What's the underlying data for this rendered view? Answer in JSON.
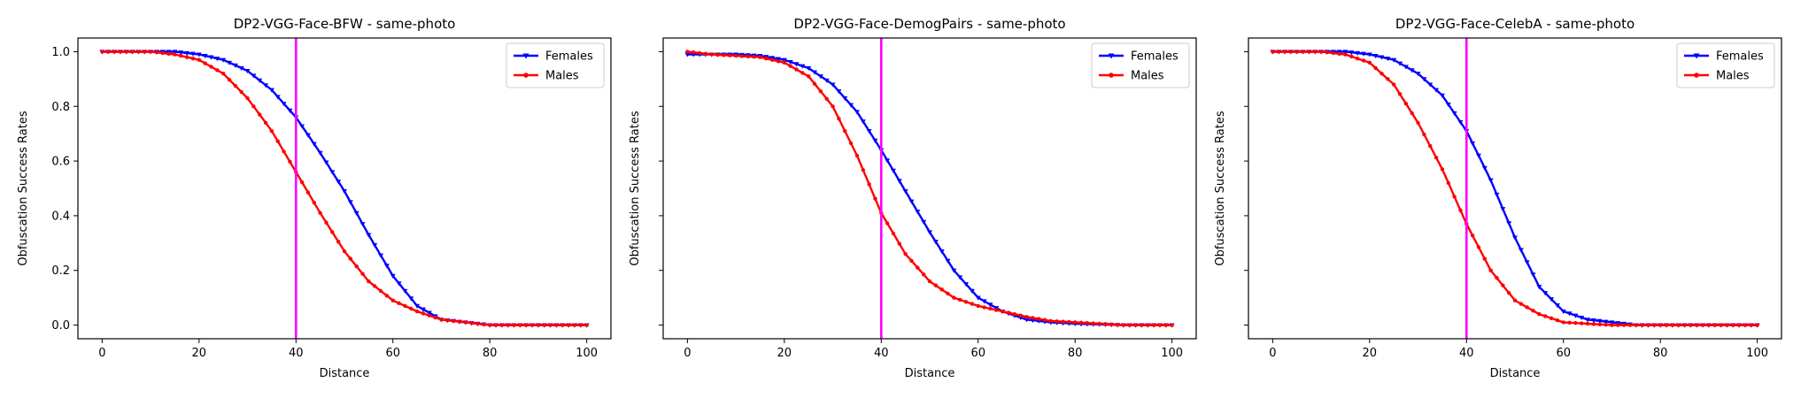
{
  "chart_data": [
    {
      "type": "line",
      "title": "DP2-VGG-Face-BFW - same-photo",
      "xlabel": "Distance",
      "ylabel": "Obfuscation Success Rates",
      "xlim": [
        -5,
        105
      ],
      "ylim": [
        -0.05,
        1.05
      ],
      "xticks": [
        "0",
        "20",
        "40",
        "60",
        "80",
        "100"
      ],
      "yticks": [
        "0.0",
        "0.2",
        "0.4",
        "0.6",
        "0.8",
        "1.0"
      ],
      "show_ytick_labels": true,
      "vline": {
        "x": 40,
        "color": "#ff00ff"
      },
      "legend_position": "top-right",
      "series": [
        {
          "name": "Females",
          "color": "#0000ff",
          "marker": "triangle-down",
          "x": [
            0,
            10,
            15,
            20,
            25,
            30,
            35,
            40,
            45,
            50,
            55,
            60,
            65,
            70,
            75,
            80,
            90,
            100
          ],
          "values": [
            1.0,
            1.0,
            1.0,
            0.99,
            0.97,
            0.93,
            0.86,
            0.76,
            0.63,
            0.49,
            0.33,
            0.18,
            0.07,
            0.02,
            0.01,
            0.0,
            0.0,
            0.0
          ]
        },
        {
          "name": "Males",
          "color": "#ff0000",
          "marker": "circle",
          "x": [
            0,
            10,
            15,
            20,
            25,
            30,
            35,
            40,
            45,
            50,
            55,
            60,
            65,
            70,
            75,
            80,
            90,
            100
          ],
          "values": [
            1.0,
            1.0,
            0.99,
            0.97,
            0.92,
            0.83,
            0.71,
            0.56,
            0.41,
            0.27,
            0.16,
            0.09,
            0.05,
            0.02,
            0.01,
            0.0,
            0.0,
            0.0
          ]
        }
      ]
    },
    {
      "type": "line",
      "title": "DP2-VGG-Face-DemogPairs - same-photo",
      "xlabel": "Distance",
      "ylabel": "Obfuscation Success Rates",
      "xlim": [
        -5,
        105
      ],
      "ylim": [
        -0.05,
        1.05
      ],
      "xticks": [
        "0",
        "20",
        "40",
        "60",
        "80",
        "100"
      ],
      "yticks": [
        "0.0",
        "0.2",
        "0.4",
        "0.6",
        "0.8",
        "1.0"
      ],
      "show_ytick_labels": false,
      "vline": {
        "x": 40,
        "color": "#ff00ff"
      },
      "legend_position": "top-right",
      "series": [
        {
          "name": "Females",
          "color": "#0000ff",
          "marker": "triangle-down",
          "x": [
            0,
            5,
            10,
            15,
            20,
            25,
            30,
            35,
            40,
            45,
            50,
            55,
            60,
            65,
            70,
            75,
            80,
            90,
            100
          ],
          "values": [
            0.99,
            0.99,
            0.99,
            0.985,
            0.97,
            0.94,
            0.88,
            0.78,
            0.64,
            0.49,
            0.34,
            0.2,
            0.1,
            0.05,
            0.02,
            0.01,
            0.005,
            0.0,
            0.0
          ]
        },
        {
          "name": "Males",
          "color": "#ff0000",
          "marker": "circle",
          "x": [
            0,
            5,
            10,
            15,
            20,
            25,
            30,
            35,
            40,
            45,
            50,
            55,
            60,
            65,
            70,
            75,
            80,
            90,
            100
          ],
          "values": [
            1.0,
            0.99,
            0.985,
            0.98,
            0.96,
            0.91,
            0.8,
            0.62,
            0.41,
            0.26,
            0.16,
            0.1,
            0.07,
            0.05,
            0.03,
            0.015,
            0.01,
            0.0,
            0.0
          ]
        }
      ]
    },
    {
      "type": "line",
      "title": "DP2-VGG-Face-CelebA - same-photo",
      "xlabel": "Distance",
      "ylabel": "Obfuscation Success Rates",
      "xlim": [
        -5,
        105
      ],
      "ylim": [
        -0.05,
        1.05
      ],
      "xticks": [
        "0",
        "20",
        "40",
        "60",
        "80",
        "100"
      ],
      "yticks": [
        "0.0",
        "0.2",
        "0.4",
        "0.6",
        "0.8",
        "1.0"
      ],
      "show_ytick_labels": false,
      "vline": {
        "x": 40,
        "color": "#ff00ff"
      },
      "legend_position": "top-right",
      "series": [
        {
          "name": "Females",
          "color": "#0000ff",
          "marker": "triangle-down",
          "x": [
            0,
            10,
            15,
            20,
            25,
            30,
            35,
            40,
            45,
            50,
            55,
            60,
            65,
            70,
            75,
            80,
            90,
            100
          ],
          "values": [
            1.0,
            1.0,
            1.0,
            0.99,
            0.97,
            0.92,
            0.84,
            0.71,
            0.53,
            0.32,
            0.14,
            0.05,
            0.02,
            0.01,
            0.0,
            0.0,
            0.0,
            0.0
          ]
        },
        {
          "name": "Males",
          "color": "#ff0000",
          "marker": "circle",
          "x": [
            0,
            10,
            15,
            20,
            25,
            30,
            35,
            40,
            45,
            50,
            55,
            60,
            65,
            70,
            75,
            80,
            90,
            100
          ],
          "values": [
            1.0,
            1.0,
            0.99,
            0.96,
            0.88,
            0.74,
            0.57,
            0.37,
            0.2,
            0.09,
            0.04,
            0.01,
            0.005,
            0.0,
            0.0,
            0.0,
            0.0,
            0.0
          ]
        }
      ]
    }
  ]
}
